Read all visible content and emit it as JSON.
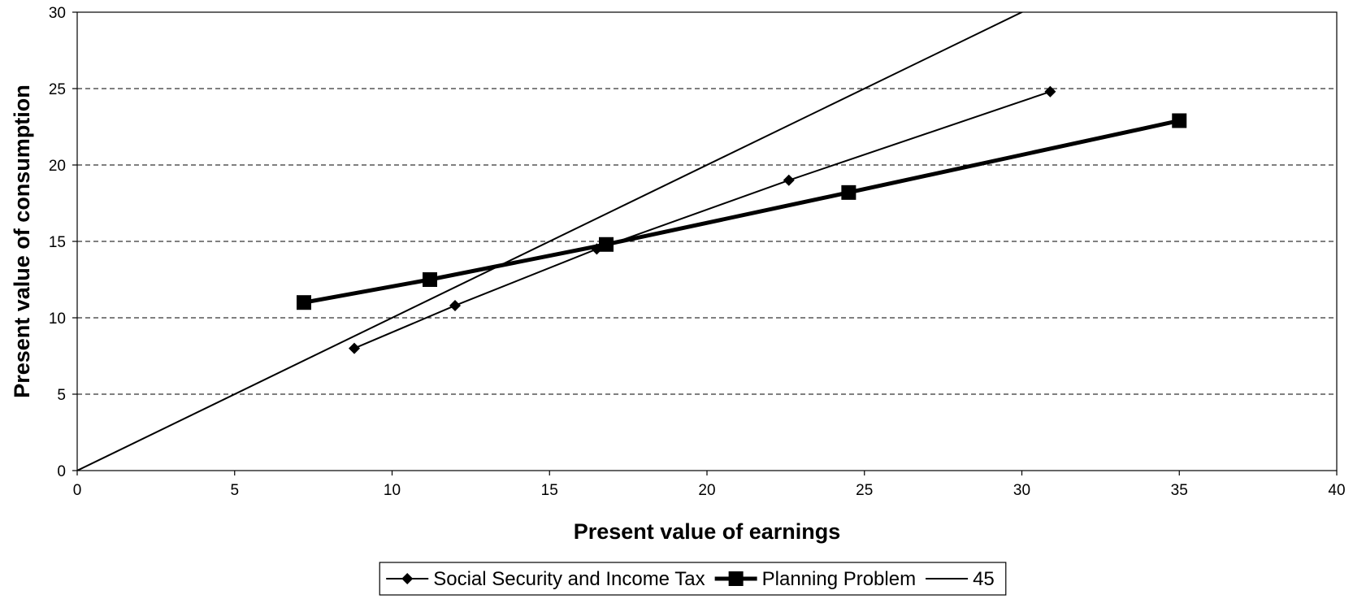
{
  "chart_data": {
    "type": "line",
    "title": "",
    "xlabel": "Present value of earnings",
    "ylabel": "Present value of consumption",
    "xlim": [
      0,
      40
    ],
    "ylim": [
      0,
      30
    ],
    "x_ticks": [
      "0",
      "5",
      "10",
      "15",
      "20",
      "25",
      "30",
      "35",
      "40"
    ],
    "y_ticks": [
      "0",
      "5",
      "10",
      "15",
      "20",
      "25",
      "30"
    ],
    "grid": "horizontal dashed",
    "legend_position": "bottom",
    "series": [
      {
        "name": "Social Security and Income Tax",
        "marker": "diamond",
        "color": "#000000",
        "x": [
          8.8,
          12.0,
          16.5,
          22.6,
          30.9
        ],
        "y": [
          8.0,
          10.8,
          14.5,
          19.0,
          24.8
        ]
      },
      {
        "name": "Planning Problem",
        "marker": "square",
        "color": "#000000",
        "x": [
          7.2,
          11.2,
          16.8,
          24.5,
          35.0
        ],
        "y": [
          11.0,
          12.5,
          14.8,
          18.2,
          22.9
        ]
      },
      {
        "name": "45",
        "marker": "none",
        "color": "#000000",
        "x": [
          0,
          30.2
        ],
        "y": [
          0,
          30.2
        ]
      }
    ]
  }
}
